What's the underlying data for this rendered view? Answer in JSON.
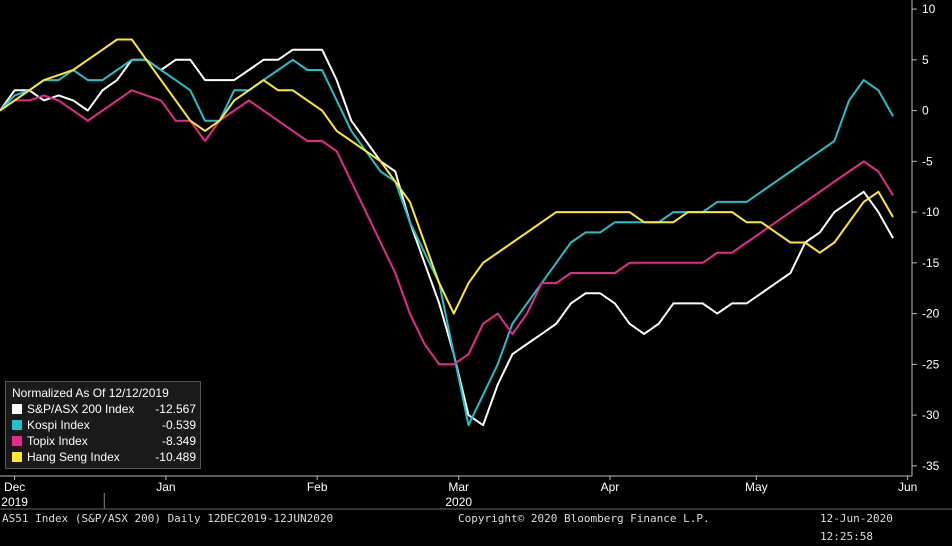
{
  "chart_data": {
    "type": "line",
    "x": [
      "2019-12-12",
      "2019-12-15",
      "2019-12-18",
      "2019-12-21",
      "2019-12-24",
      "2019-12-27",
      "2019-12-30",
      "2020-01-02",
      "2020-01-05",
      "2020-01-08",
      "2020-01-11",
      "2020-01-14",
      "2020-01-17",
      "2020-01-20",
      "2020-01-23",
      "2020-01-26",
      "2020-01-29",
      "2020-02-01",
      "2020-02-04",
      "2020-02-07",
      "2020-02-10",
      "2020-02-13",
      "2020-02-16",
      "2020-02-19",
      "2020-02-22",
      "2020-02-25",
      "2020-02-28",
      "2020-03-02",
      "2020-03-05",
      "2020-03-08",
      "2020-03-11",
      "2020-03-14",
      "2020-03-17",
      "2020-03-20",
      "2020-03-23",
      "2020-03-26",
      "2020-03-29",
      "2020-04-01",
      "2020-04-04",
      "2020-04-07",
      "2020-04-10",
      "2020-04-13",
      "2020-04-16",
      "2020-04-19",
      "2020-04-22",
      "2020-04-25",
      "2020-04-28",
      "2020-05-01",
      "2020-05-04",
      "2020-05-07",
      "2020-05-10",
      "2020-05-13",
      "2020-05-16",
      "2020-05-19",
      "2020-05-22",
      "2020-05-25",
      "2020-05-28",
      "2020-05-31",
      "2020-06-03",
      "2020-06-06",
      "2020-06-09",
      "2020-06-12"
    ],
    "series": [
      {
        "name": "S&P/ASX 200 Index",
        "color": "#ffffff",
        "values": [
          0,
          2,
          2,
          1,
          1.5,
          1,
          0,
          2,
          3,
          5,
          5,
          4,
          5,
          5,
          3,
          3,
          3,
          4,
          5,
          5,
          6,
          6,
          6,
          3,
          -1,
          -3,
          -5,
          -6,
          -11,
          -15,
          -19,
          -24,
          -30,
          -31,
          -27,
          -24,
          -23,
          -22,
          -21,
          -19,
          -18,
          -18,
          -19,
          -21,
          -22,
          -21,
          -19,
          -19,
          -19,
          -20,
          -19,
          -19,
          -18,
          -17,
          -16,
          -13,
          -12,
          -10,
          -9,
          -8,
          -10,
          -12.567
        ]
      },
      {
        "name": "Kospi Index",
        "color": "#22c0c8",
        "values": [
          0,
          1.5,
          2,
          3,
          3,
          4,
          3,
          3,
          4,
          5,
          5,
          4,
          3,
          2,
          -1,
          -1,
          2,
          2,
          3,
          4,
          5,
          4,
          4,
          1,
          -2,
          -4,
          -6,
          -7,
          -11,
          -14,
          -17,
          -24,
          -31,
          -28,
          -25,
          -21,
          -19,
          -17,
          -15,
          -13,
          -12,
          -12,
          -11,
          -11,
          -11,
          -11,
          -10,
          -10,
          -10,
          -9,
          -9,
          -9,
          -8,
          -7,
          -6,
          -5,
          -4,
          -3,
          1,
          3,
          2,
          -0.539
        ]
      },
      {
        "name": "Topix Index",
        "color": "#e8288c",
        "values": [
          0,
          1,
          1,
          1.5,
          1,
          0,
          -1,
          0,
          1,
          2,
          1.5,
          1,
          -1,
          -1,
          -3,
          -1,
          0,
          1,
          0,
          -1,
          -2,
          -3,
          -3,
          -4,
          -7,
          -10,
          -13,
          -16,
          -20,
          -23,
          -25,
          -25,
          -24,
          -21,
          -20,
          -22,
          -20,
          -17,
          -17,
          -16,
          -16,
          -16,
          -16,
          -15,
          -15,
          -15,
          -15,
          -15,
          -15,
          -14,
          -14,
          -13,
          -12,
          -11,
          -10,
          -9,
          -8,
          -7,
          -6,
          -5,
          -6,
          -8.349
        ]
      },
      {
        "name": "Hang Seng Index",
        "color": "#ffe82a",
        "values": [
          0,
          1,
          2,
          3,
          3.5,
          4,
          5,
          6,
          7,
          7,
          5,
          3,
          1,
          -1,
          -2,
          -1,
          1,
          2,
          3,
          2,
          2,
          1,
          0,
          -2,
          -3,
          -4,
          -5,
          -7,
          -9,
          -13,
          -17,
          -20,
          -17,
          -15,
          -14,
          -13,
          -12,
          -11,
          -10,
          -10,
          -10,
          -10,
          -10,
          -10,
          -11,
          -11,
          -11,
          -10,
          -10,
          -10,
          -10,
          -11,
          -11,
          -12,
          -13,
          -13,
          -14,
          -13,
          -11,
          -9,
          -8,
          -10.489
        ]
      }
    ],
    "y_ticks": [
      "10",
      "5",
      "0",
      "-5",
      "-10",
      "-15",
      "-20",
      "-25",
      "-30",
      "-35"
    ],
    "ylim": [
      -36,
      10.5
    ],
    "x_tick_labels": [
      {
        "label": "Dec",
        "date": "2019-12-15"
      },
      {
        "label": "Jan",
        "date": "2020-01-15"
      },
      {
        "label": "Feb",
        "date": "2020-02-15"
      },
      {
        "label": "Mar",
        "date": "2020-03-15"
      },
      {
        "label": "Apr",
        "date": "2020-04-15"
      },
      {
        "label": "May",
        "date": "2020-05-15"
      },
      {
        "label": "Jun",
        "date": "2020-06-15"
      }
    ],
    "year_labels": [
      {
        "label": "2019",
        "date": "2019-12-15"
      },
      {
        "label": "2020",
        "date": "2020-03-15"
      }
    ],
    "legend_position": "bottom-left",
    "grid": false
  },
  "legend": {
    "title": "Normalized As Of 12/12/2019",
    "items": [
      {
        "name": "S&P/ASX 200 Index",
        "value": "-12.567",
        "color": "#ffffff"
      },
      {
        "name": "Kospi Index",
        "value": "-0.539",
        "color": "#22c0c8"
      },
      {
        "name": "Topix Index",
        "value": "-8.349",
        "color": "#e8288c"
      },
      {
        "name": "Hang Seng Index",
        "value": "-10.489",
        "color": "#ffe82a"
      }
    ]
  },
  "footer": {
    "left": "AS51 Index (S&P/ASX 200)  Daily 12DEC2019-12JUN2020",
    "center": "Copyright© 2020 Bloomberg Finance L.P.",
    "right": "12-Jun-2020 12:25:58"
  }
}
